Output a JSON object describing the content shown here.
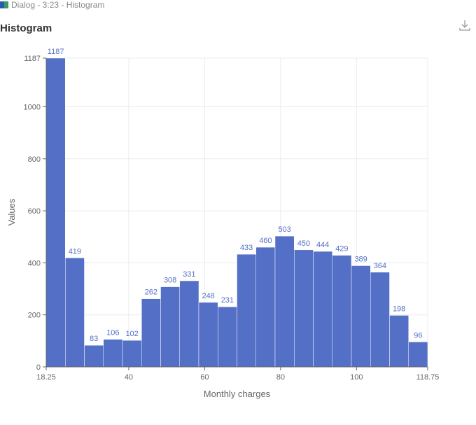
{
  "window_title": "Dialog - 3:23 - Histogram",
  "title": "Histogram",
  "download_icon": "download-icon",
  "chart_data": {
    "type": "bar",
    "title": "Histogram",
    "xlabel": "Monthly charges",
    "ylabel": "Values",
    "xlim": [
      18.25,
      118.75
    ],
    "ylim": [
      0,
      1187
    ],
    "bin_edges_start": 18.25,
    "bin_width": 5.025,
    "values": [
      1187,
      419,
      83,
      106,
      102,
      262,
      308,
      331,
      248,
      231,
      433,
      460,
      503,
      450,
      444,
      429,
      389,
      364,
      198,
      96
    ],
    "x_ticks": [
      "18.25",
      "40",
      "60",
      "80",
      "100",
      "118.75"
    ],
    "y_ticks": [
      "0",
      "200",
      "400",
      "600",
      "800",
      "1000",
      "1187"
    ],
    "grid": true,
    "bar_color": "#5470c6",
    "label_color": "#5470c6"
  }
}
